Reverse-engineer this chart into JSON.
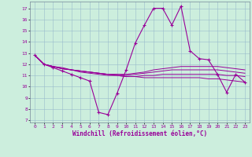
{
  "xlabel": "Windchill (Refroidissement éolien,°C)",
  "background_color": "#cceedd",
  "grid_color": "#99bbcc",
  "line_color": "#990099",
  "x_ticks": [
    0,
    1,
    2,
    3,
    4,
    5,
    6,
    7,
    8,
    9,
    10,
    11,
    12,
    13,
    14,
    15,
    16,
    17,
    18,
    19,
    20,
    21,
    22,
    23
  ],
  "y_ticks": [
    7,
    8,
    9,
    10,
    11,
    12,
    13,
    14,
    15,
    16,
    17
  ],
  "ylim": [
    6.8,
    17.6
  ],
  "xlim": [
    -0.5,
    23.5
  ],
  "series1": [
    12.8,
    12.0,
    11.7,
    11.4,
    11.1,
    10.8,
    10.5,
    7.7,
    7.5,
    9.4,
    11.5,
    13.9,
    15.5,
    17.0,
    17.0,
    15.5,
    17.2,
    13.2,
    12.5,
    12.4,
    11.1,
    9.5,
    11.1,
    10.4
  ],
  "series2": [
    12.8,
    12.0,
    11.8,
    11.6,
    11.5,
    11.4,
    11.3,
    11.2,
    11.1,
    11.1,
    11.1,
    11.2,
    11.3,
    11.5,
    11.6,
    11.7,
    11.8,
    11.8,
    11.8,
    11.8,
    11.8,
    11.7,
    11.6,
    11.5
  ],
  "series3": [
    12.8,
    12.0,
    11.8,
    11.6,
    11.5,
    11.4,
    11.3,
    11.2,
    11.1,
    11.1,
    11.0,
    11.1,
    11.2,
    11.3,
    11.4,
    11.5,
    11.5,
    11.5,
    11.5,
    11.5,
    11.5,
    11.4,
    11.3,
    11.2
  ],
  "series4": [
    12.8,
    12.0,
    11.8,
    11.6,
    11.5,
    11.3,
    11.2,
    11.1,
    11.0,
    11.0,
    10.9,
    10.9,
    11.0,
    11.0,
    11.1,
    11.1,
    11.1,
    11.1,
    11.1,
    11.1,
    11.1,
    11.0,
    11.0,
    10.9
  ],
  "series5": [
    12.8,
    12.0,
    11.8,
    11.7,
    11.5,
    11.4,
    11.3,
    11.2,
    11.1,
    11.0,
    10.9,
    10.9,
    10.8,
    10.8,
    10.8,
    10.8,
    10.8,
    10.8,
    10.8,
    10.7,
    10.7,
    10.6,
    10.5,
    10.4
  ]
}
